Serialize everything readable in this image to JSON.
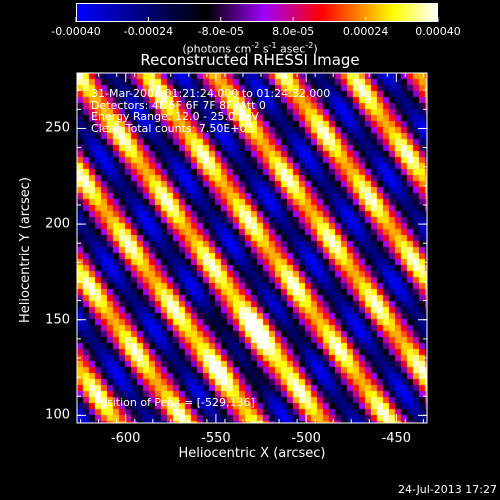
{
  "chart_data": [
    {
      "type": "colorbar",
      "ticks": [
        "-0.00040",
        "-0.00024",
        "-8.0e-05",
        "8.0e-05",
        "0.00024",
        "0.00040"
      ],
      "range": [
        -0.0004,
        0.0004
      ],
      "units_main": "(photons cm",
      "units_sup1": "-2",
      "units_mid1": " s",
      "units_sup2": "-1",
      "units_mid2": " asec",
      "units_sup3": "-2",
      "units_end": ")",
      "colors": [
        "#0000ff",
        "#000000",
        "#a000ff",
        "#ff0000",
        "#ffff00",
        "#ffffff"
      ]
    },
    {
      "type": "heatmap",
      "title": "Reconstructed RHESSI Image",
      "xlabel": "Heliocentric X (arcsec)",
      "ylabel": "Heliocentric Y (arcsec)",
      "xlim": [
        -627,
        -433
      ],
      "ylim": [
        96,
        279
      ],
      "xticks": [
        "-600",
        "-550",
        "-500",
        "-450"
      ],
      "xtick_values": [
        -600,
        -550,
        -500,
        -450
      ],
      "yticks": [
        "100",
        "150",
        "200",
        "250"
      ],
      "ytick_values": [
        100,
        150,
        200,
        250
      ],
      "peak_position": [
        -529,
        136
      ],
      "stripe_angle_deg": 35,
      "description_lines": [
        "31-Mar-2007 01:21:24.000 to 01:24:32.000",
        "Detectors: 4F 5F 6F 7F 8F, Att 0",
        "Energy Range: 12.0 - 25.0 keV",
        "Clean    Total counts: 7.50E+03"
      ],
      "peak_label": "Position of Peak = [-529,136]"
    }
  ],
  "footer": {
    "timestamp": "24-Jul-2013 17:27"
  }
}
